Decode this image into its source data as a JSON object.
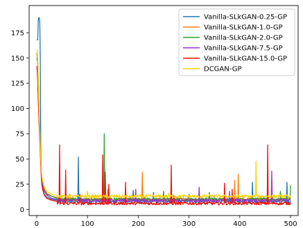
{
  "chart_data": {
    "type": "line",
    "title": "",
    "xlabel": "",
    "ylabel": "",
    "xlim": [
      -15,
      515
    ],
    "ylim": [
      -6,
      202
    ],
    "xticks": [
      0,
      100,
      200,
      300,
      400,
      500
    ],
    "yticks": [
      0,
      25,
      50,
      75,
      100,
      125,
      150,
      175
    ],
    "grid": false,
    "legend_position": "top-right",
    "series": [
      {
        "name": "Vanilla-SLkGAN-0.25-GP",
        "color": "#1f77b4",
        "baseline": 8,
        "points": [
          [
            0,
            168
          ],
          [
            1,
            168
          ],
          [
            2,
            168
          ],
          [
            3,
            188
          ],
          [
            4,
            190
          ],
          [
            5,
            190
          ],
          [
            6,
            186
          ],
          [
            7,
            150
          ],
          [
            8,
            60
          ],
          [
            9,
            40
          ],
          [
            10,
            30
          ],
          [
            11,
            25
          ],
          [
            12,
            20
          ],
          [
            15,
            15
          ],
          [
            20,
            12
          ],
          [
            30,
            10
          ],
          [
            40,
            9
          ]
        ],
        "spikes": [
          [
            82,
            52
          ],
          [
            130,
            30
          ],
          [
            190,
            19
          ],
          [
            230,
            17
          ],
          [
            300,
            15
          ],
          [
            350,
            14
          ],
          [
            425,
            27
          ],
          [
            493,
            27
          ]
        ]
      },
      {
        "name": "Vanilla-SLkGAN-1.0-GP",
        "color": "#ff7f0e",
        "baseline": 10,
        "points": [
          [
            0,
            155
          ],
          [
            1,
            150
          ],
          [
            2,
            138
          ],
          [
            3,
            112
          ],
          [
            4,
            95
          ],
          [
            5,
            80
          ],
          [
            6,
            70
          ],
          [
            7,
            60
          ],
          [
            8,
            45
          ],
          [
            9,
            35
          ],
          [
            10,
            30
          ],
          [
            12,
            25
          ],
          [
            15,
            20
          ],
          [
            20,
            16
          ],
          [
            30,
            13
          ],
          [
            40,
            12
          ]
        ],
        "spikes": [
          [
            25,
            20
          ],
          [
            65,
            15
          ],
          [
            140,
            20
          ],
          [
            208,
            37
          ],
          [
            300,
            14
          ],
          [
            390,
            29
          ],
          [
            397,
            35
          ],
          [
            455,
            20
          ]
        ]
      },
      {
        "name": "Vanilla-SLkGAN-2.0-GP",
        "color": "#2ca02c",
        "baseline": 10,
        "points": [
          [
            0,
            148
          ],
          [
            1,
            150
          ],
          [
            2,
            145
          ],
          [
            3,
            130
          ],
          [
            4,
            110
          ],
          [
            5,
            95
          ],
          [
            6,
            80
          ],
          [
            7,
            65
          ],
          [
            8,
            50
          ],
          [
            9,
            38
          ],
          [
            10,
            30
          ],
          [
            12,
            24
          ],
          [
            15,
            19
          ],
          [
            20,
            15
          ],
          [
            30,
            13
          ],
          [
            40,
            11
          ]
        ],
        "spikes": [
          [
            133,
            75
          ],
          [
            250,
            18
          ],
          [
            340,
            17
          ],
          [
            480,
            18
          ],
          [
            500,
            24
          ]
        ]
      },
      {
        "name": "Vanilla-SLkGAN-7.5-GP",
        "color": "#9932cc",
        "baseline": 9,
        "points": [
          [
            0,
            140
          ],
          [
            1,
            138
          ],
          [
            2,
            130
          ],
          [
            3,
            115
          ],
          [
            4,
            100
          ],
          [
            5,
            88
          ],
          [
            6,
            75
          ],
          [
            7,
            62
          ],
          [
            8,
            50
          ],
          [
            9,
            38
          ],
          [
            10,
            30
          ],
          [
            12,
            23
          ],
          [
            15,
            18
          ],
          [
            20,
            14
          ],
          [
            30,
            11
          ],
          [
            40,
            10
          ]
        ],
        "spikes": [
          [
            195,
            20
          ],
          [
            320,
            22
          ],
          [
            380,
            18
          ],
          [
            463,
            38
          ]
        ]
      },
      {
        "name": "Vanilla-SLkGAN-15.0-GP",
        "color": "#ee1111",
        "baseline": 6,
        "points": [
          [
            0,
            142
          ],
          [
            1,
            140
          ],
          [
            2,
            128
          ],
          [
            3,
            108
          ],
          [
            4,
            95
          ],
          [
            5,
            82
          ],
          [
            6,
            68
          ],
          [
            7,
            55
          ],
          [
            8,
            43
          ],
          [
            9,
            32
          ],
          [
            10,
            25
          ],
          [
            12,
            19
          ],
          [
            15,
            14
          ],
          [
            20,
            11
          ],
          [
            30,
            9
          ],
          [
            40,
            8
          ]
        ],
        "spikes": [
          [
            22,
            38
          ],
          [
            45,
            64
          ],
          [
            57,
            39
          ],
          [
            85,
            15
          ],
          [
            130,
            54
          ],
          [
            135,
            37
          ],
          [
            142,
            25
          ],
          [
            175,
            27
          ],
          [
            265,
            44
          ],
          [
            270,
            14
          ],
          [
            370,
            26
          ],
          [
            385,
            20
          ],
          [
            455,
            64
          ]
        ]
      },
      {
        "name": "DCGAN-GP",
        "color": "#ffd400",
        "baseline": 13,
        "points": [
          [
            0,
            158
          ],
          [
            1,
            158
          ],
          [
            2,
            148
          ],
          [
            3,
            130
          ],
          [
            4,
            110
          ],
          [
            5,
            92
          ],
          [
            6,
            78
          ],
          [
            7,
            62
          ],
          [
            8,
            50
          ],
          [
            9,
            40
          ],
          [
            10,
            33
          ],
          [
            12,
            27
          ],
          [
            15,
            22
          ],
          [
            20,
            18
          ],
          [
            30,
            15
          ],
          [
            40,
            14
          ]
        ],
        "spikes": [
          [
            35,
            20
          ],
          [
            100,
            18
          ],
          [
            260,
            16
          ],
          [
            340,
            15
          ],
          [
            432,
            48
          ]
        ]
      }
    ]
  }
}
